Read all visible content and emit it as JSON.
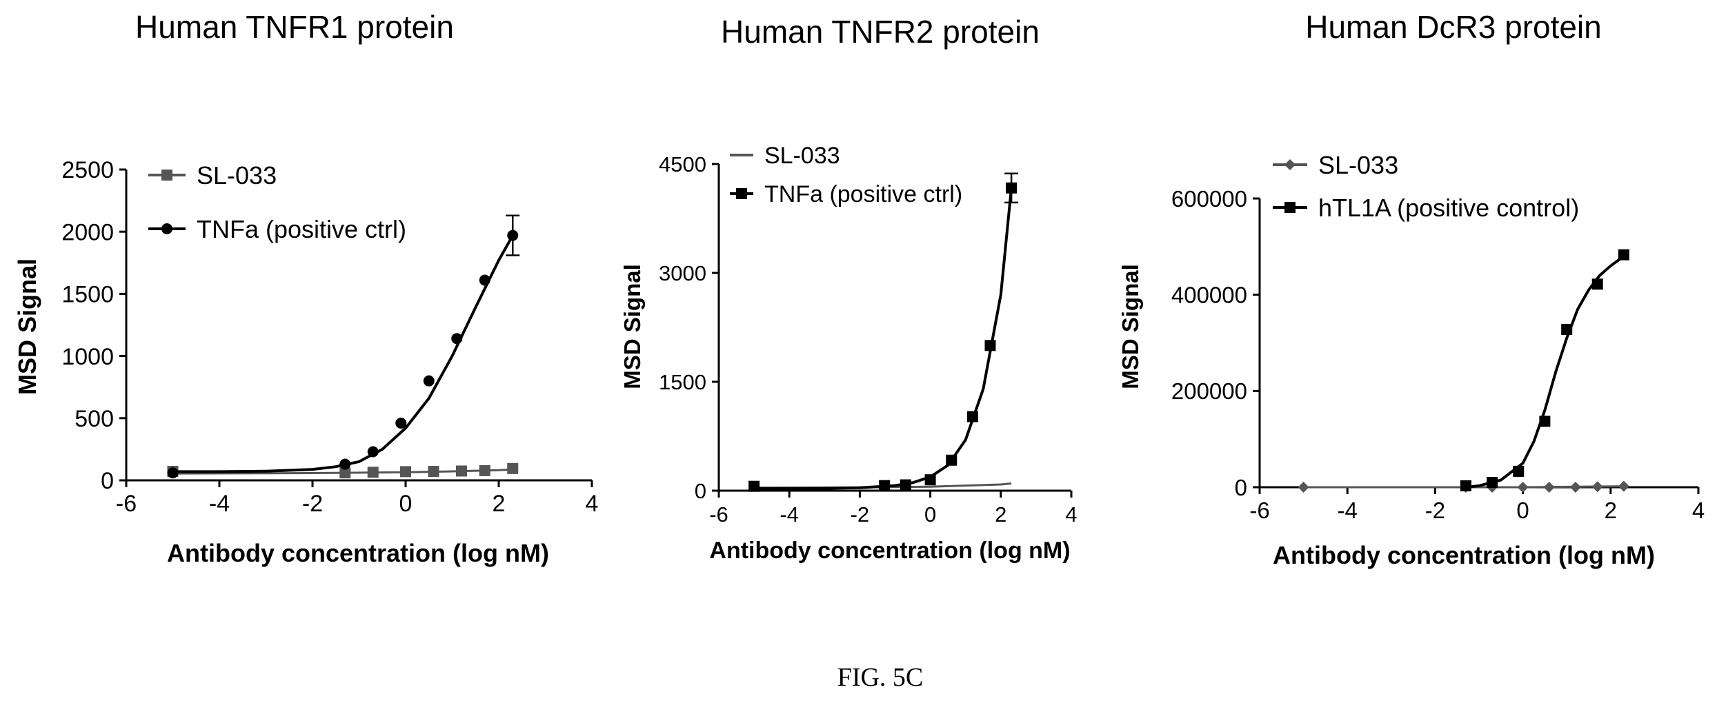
{
  "figure": {
    "caption": "FIG. 5C"
  },
  "chart_data": [
    {
      "type": "scatter",
      "title": "Human TNFR1 protein",
      "xlabel": "Antibody concentration (log nM)",
      "ylabel": "MSD Signal",
      "xlim": [
        -6,
        4
      ],
      "ylim": [
        0,
        2500
      ],
      "xticks": [
        -6,
        -4,
        -2,
        0,
        2,
        4
      ],
      "yticks": [
        0,
        500,
        1000,
        1500,
        2000,
        2500
      ],
      "legend_position": "top-left",
      "series": [
        {
          "name": "SL-033",
          "marker": "square",
          "color": "#555555",
          "x": [
            -5,
            -1.3,
            -0.7,
            0,
            0.6,
            1.2,
            1.7,
            2.3
          ],
          "y": [
            72,
            60,
            65,
            70,
            72,
            75,
            78,
            95
          ],
          "fit": [
            [
              -5,
              55
            ],
            [
              -2,
              58
            ],
            [
              0,
              65
            ],
            [
              1,
              72
            ],
            [
              2,
              82
            ],
            [
              2.3,
              88
            ]
          ]
        },
        {
          "name": "TNFa (positive ctrl)",
          "marker": "circle",
          "color": "#000000",
          "x": [
            -5,
            -1.3,
            -0.7,
            -0.1,
            0.5,
            1.1,
            1.7,
            2.3
          ],
          "y": [
            60,
            130,
            230,
            460,
            800,
            1140,
            1610,
            1970
          ],
          "error": [
            0,
            0,
            0,
            0,
            0,
            0,
            0,
            160
          ],
          "fit": [
            [
              -5,
              70
            ],
            [
              -4,
              70
            ],
            [
              -3,
              74
            ],
            [
              -2,
              88
            ],
            [
              -1.5,
              110
            ],
            [
              -1,
              150
            ],
            [
              -0.5,
              250
            ],
            [
              0,
              420
            ],
            [
              0.5,
              660
            ],
            [
              1,
              1000
            ],
            [
              1.5,
              1390
            ],
            [
              2,
              1770
            ],
            [
              2.3,
              1970
            ]
          ]
        }
      ]
    },
    {
      "type": "scatter",
      "title": "Human TNFR2 protein",
      "xlabel": "Antibody concentration (log nM)",
      "ylabel": "MSD Signal",
      "xlim": [
        -6,
        4
      ],
      "ylim": [
        0,
        4500
      ],
      "xticks": [
        -6,
        -4,
        -2,
        0,
        2,
        4
      ],
      "yticks": [
        0,
        1500,
        3000,
        4500
      ],
      "legend_position": "top-left",
      "series": [
        {
          "name": "SL-033",
          "marker": "none",
          "color": "#555555",
          "x": [
            -5,
            -1.3,
            -0.7,
            0,
            0.6,
            1.2,
            1.7,
            2.3
          ],
          "y": [
            60,
            50,
            55,
            60,
            65,
            70,
            80,
            100
          ],
          "fit": [
            [
              -5,
              40
            ],
            [
              -2,
              45
            ],
            [
              0,
              55
            ],
            [
              1,
              70
            ],
            [
              2,
              85
            ],
            [
              2.3,
              100
            ]
          ]
        },
        {
          "name": "TNFa (positive ctrl)",
          "marker": "square",
          "color": "#000000",
          "x": [
            -5,
            -1.3,
            -0.7,
            0,
            0.6,
            1.2,
            1.7,
            2.3
          ],
          "y": [
            60,
            70,
            80,
            150,
            420,
            1020,
            2000,
            4170
          ],
          "error": [
            0,
            0,
            0,
            0,
            0,
            0,
            0,
            200
          ],
          "fit": [
            [
              -5,
              30
            ],
            [
              -3,
              32
            ],
            [
              -2,
              40
            ],
            [
              -1,
              70
            ],
            [
              -0.5,
              110
            ],
            [
              0,
              190
            ],
            [
              0.5,
              350
            ],
            [
              1,
              700
            ],
            [
              1.5,
              1400
            ],
            [
              2,
              2700
            ],
            [
              2.3,
              4170
            ]
          ]
        }
      ]
    },
    {
      "type": "scatter",
      "title": "Human DcR3 protein",
      "xlabel": "Antibody concentration (log nM)",
      "ylabel": "MSD Signal",
      "xlim": [
        -6,
        4
      ],
      "ylim": [
        0,
        600000
      ],
      "xticks": [
        -6,
        -4,
        -2,
        0,
        2,
        4
      ],
      "yticks": [
        0,
        200000,
        400000,
        600000
      ],
      "legend_position": "top-left",
      "series": [
        {
          "name": "SL-033",
          "marker": "diamond",
          "color": "#555555",
          "x": [
            -5,
            -1.3,
            -0.7,
            0,
            0.6,
            1.2,
            1.7,
            2.3
          ],
          "y": [
            0,
            0,
            0,
            0,
            0,
            0,
            1000,
            2000
          ],
          "fit": [
            [
              -5,
              0
            ],
            [
              0,
              0
            ],
            [
              2.3,
              2000
            ]
          ]
        },
        {
          "name": "hTL1A (positive control)",
          "marker": "square",
          "color": "#000000",
          "x": [
            -1.3,
            -0.7,
            -0.1,
            0.5,
            1.0,
            1.7,
            2.3
          ],
          "y": [
            3000,
            10000,
            33000,
            137000,
            328000,
            422000,
            483000
          ],
          "fit": [
            [
              -1.3,
              0
            ],
            [
              -1,
              3000
            ],
            [
              -0.5,
              15000
            ],
            [
              0,
              50000
            ],
            [
              0.25,
              95000
            ],
            [
              0.5,
              160000
            ],
            [
              0.75,
              240000
            ],
            [
              1,
              310000
            ],
            [
              1.25,
              370000
            ],
            [
              1.5,
              410000
            ],
            [
              1.75,
              440000
            ],
            [
              2,
              460000
            ],
            [
              2.3,
              480000
            ]
          ]
        }
      ]
    }
  ]
}
